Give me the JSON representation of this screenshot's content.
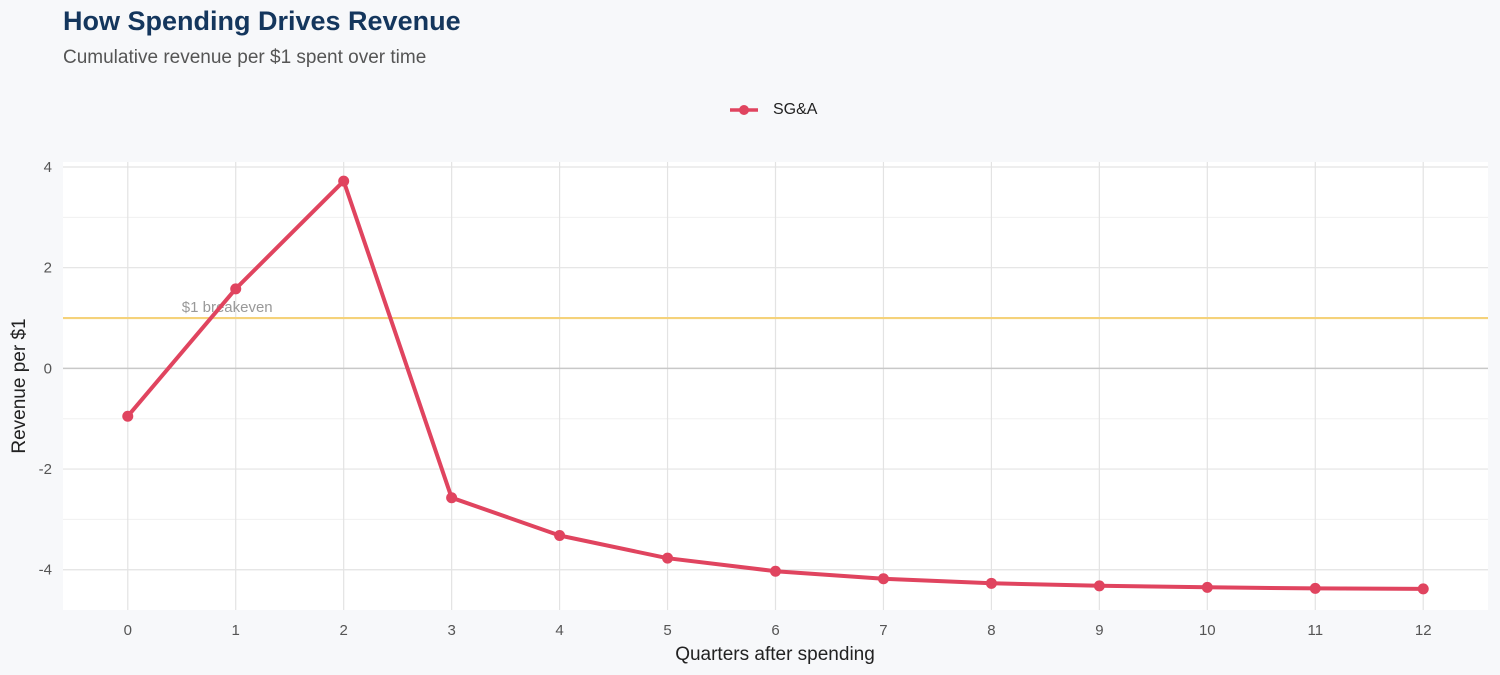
{
  "chart_data": {
    "type": "line",
    "title": "How Spending Drives Revenue",
    "subtitle": "Cumulative revenue per $1 spent over time",
    "xlabel": "Quarters after spending",
    "ylabel": "Revenue per $1",
    "x": [
      0,
      1,
      2,
      3,
      4,
      5,
      6,
      7,
      8,
      9,
      10,
      11,
      12
    ],
    "series": [
      {
        "name": "SG&A",
        "color": "#e0445f",
        "values": [
          -0.95,
          1.58,
          3.72,
          -2.57,
          -3.32,
          -3.77,
          -4.03,
          -4.18,
          -4.27,
          -4.32,
          -4.35,
          -4.37,
          -4.38
        ]
      }
    ],
    "xlim": [
      -0.6,
      12.6
    ],
    "ylim": [
      -4.8,
      4.1
    ],
    "x_ticks": [
      "0",
      "1",
      "2",
      "3",
      "4",
      "5",
      "6",
      "7",
      "8",
      "9",
      "10",
      "11",
      "12"
    ],
    "y_ticks": [
      {
        "value": -4,
        "label": "-4"
      },
      {
        "value": -2,
        "label": "-2"
      },
      {
        "value": 0,
        "label": "0"
      },
      {
        "value": 2,
        "label": "2"
      },
      {
        "value": 4,
        "label": "4"
      }
    ],
    "reference_line": {
      "value": 1,
      "label": "$1 breakeven",
      "color": "#f5d27a",
      "label_x": 0.5
    },
    "zero_line_color": "#c8c8c8",
    "grid": true,
    "legend_position": "top-center"
  }
}
